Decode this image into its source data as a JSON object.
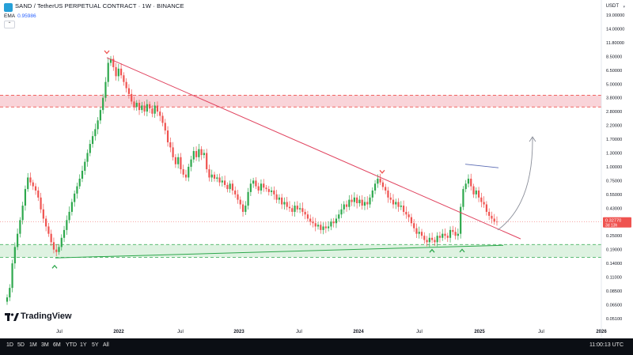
{
  "header": {
    "title": "SAND / TetherUS PERPETUAL CONTRACT · 1W · BINANCE",
    "ema_label": "EMA",
    "ema_value": "0.95986",
    "collapse_glyph": "⌃",
    "unit_label": "USDT",
    "unit_caret": "▾"
  },
  "price_axis": {
    "labels": [
      "19.00000",
      "14.00000",
      "11.80000",
      "8.50000",
      "6.50000",
      "5.00000",
      "3.80000",
      "2.80000",
      "2.20000",
      "1.70000",
      "1.30000",
      "1.00000",
      "0.75000",
      "0.55000",
      "0.43000",
      "0.32770",
      "0.25000",
      "0.19000",
      "0.14000",
      "0.11000",
      "0.08500",
      "0.06500",
      "0.05100"
    ],
    "current_price": "0.32770",
    "countdown": "3d 13h"
  },
  "time_axis": {
    "labels": [
      "Jul",
      "2022",
      "Jul",
      "2023",
      "Jul",
      "2024",
      "Jul",
      "2025",
      "Jul",
      "2026"
    ]
  },
  "bottom_bar": {
    "ranges": [
      "1D",
      "5D",
      "1M",
      "3M",
      "6M",
      "YTD",
      "1Y",
      "5Y",
      "All"
    ],
    "clock": "11:00:13 UTC"
  },
  "branding": {
    "name": "TradingView"
  },
  "colors": {
    "up": "#26a69a",
    "up_green": "#2ea84d",
    "down": "#ef5350",
    "trendline": "#e0425e",
    "support_line": "#2ea84d",
    "resistance_zone": "#f7c6cc",
    "support_zone": "#d8f0dc",
    "price_tag": "#ef5350",
    "arrow": "#8a8e99"
  },
  "chart_data": {
    "type": "candlestick",
    "symbol": "SAND / TetherUS PERPETUAL CONTRACT",
    "interval": "1W",
    "exchange": "BINANCE",
    "scale": "log",
    "ylim": [
      0.051,
      19.0
    ],
    "x_ticks": [
      "Jul",
      "2022",
      "Jul",
      "2023",
      "Jul",
      "2024",
      "Jul",
      "2025",
      "Jul",
      "2026"
    ],
    "last_price": 0.3277,
    "resistance_zone": [
      3.1,
      4.0
    ],
    "support_zone": [
      0.16,
      0.21
    ],
    "closes": [
      0.075,
      0.09,
      0.14,
      0.2,
      0.26,
      0.34,
      0.45,
      0.62,
      0.8,
      0.72,
      0.66,
      0.6,
      0.52,
      0.42,
      0.35,
      0.3,
      0.26,
      0.22,
      0.19,
      0.18,
      0.2,
      0.24,
      0.28,
      0.34,
      0.4,
      0.48,
      0.56,
      0.66,
      0.78,
      0.92,
      1.1,
      1.3,
      1.55,
      1.8,
      2.05,
      2.4,
      2.9,
      3.8,
      5.2,
      7.5,
      8.1,
      6.9,
      5.8,
      6.7,
      5.9,
      5.2,
      4.6,
      4.1,
      3.5,
      3.1,
      3.4,
      2.9,
      3.2,
      2.8,
      3.3,
      3.0,
      2.7,
      3.2,
      2.8,
      2.6,
      2.3,
      2.0,
      1.6,
      1.45,
      1.2,
      1.05,
      1.2,
      0.95,
      0.85,
      0.8,
      1.0,
      1.15,
      1.35,
      1.2,
      1.4,
      1.25,
      1.3,
      0.95,
      0.8,
      0.85,
      0.78,
      0.8,
      0.72,
      0.75,
      0.68,
      0.62,
      0.7,
      0.6,
      0.55,
      0.5,
      0.46,
      0.4,
      0.45,
      0.58,
      0.7,
      0.75,
      0.66,
      0.6,
      0.7,
      0.64,
      0.62,
      0.58,
      0.6,
      0.55,
      0.5,
      0.52,
      0.46,
      0.48,
      0.44,
      0.43,
      0.4,
      0.45,
      0.42,
      0.43,
      0.4,
      0.38,
      0.35,
      0.33,
      0.32,
      0.3,
      0.31,
      0.28,
      0.3,
      0.29,
      0.3,
      0.33,
      0.32,
      0.35,
      0.38,
      0.42,
      0.46,
      0.44,
      0.5,
      0.48,
      0.52,
      0.47,
      0.5,
      0.45,
      0.48,
      0.46,
      0.52,
      0.6,
      0.7,
      0.78,
      0.72,
      0.65,
      0.6,
      0.52,
      0.5,
      0.46,
      0.48,
      0.44,
      0.45,
      0.4,
      0.38,
      0.36,
      0.32,
      0.29,
      0.26,
      0.27,
      0.25,
      0.23,
      0.22,
      0.24,
      0.23,
      0.22,
      0.25,
      0.24,
      0.26,
      0.25,
      0.24,
      0.28,
      0.27,
      0.25,
      0.26,
      0.44,
      0.62,
      0.7,
      0.78,
      0.66,
      0.55,
      0.6,
      0.52,
      0.48,
      0.46,
      0.4,
      0.37,
      0.35,
      0.33,
      0.3277
    ]
  }
}
